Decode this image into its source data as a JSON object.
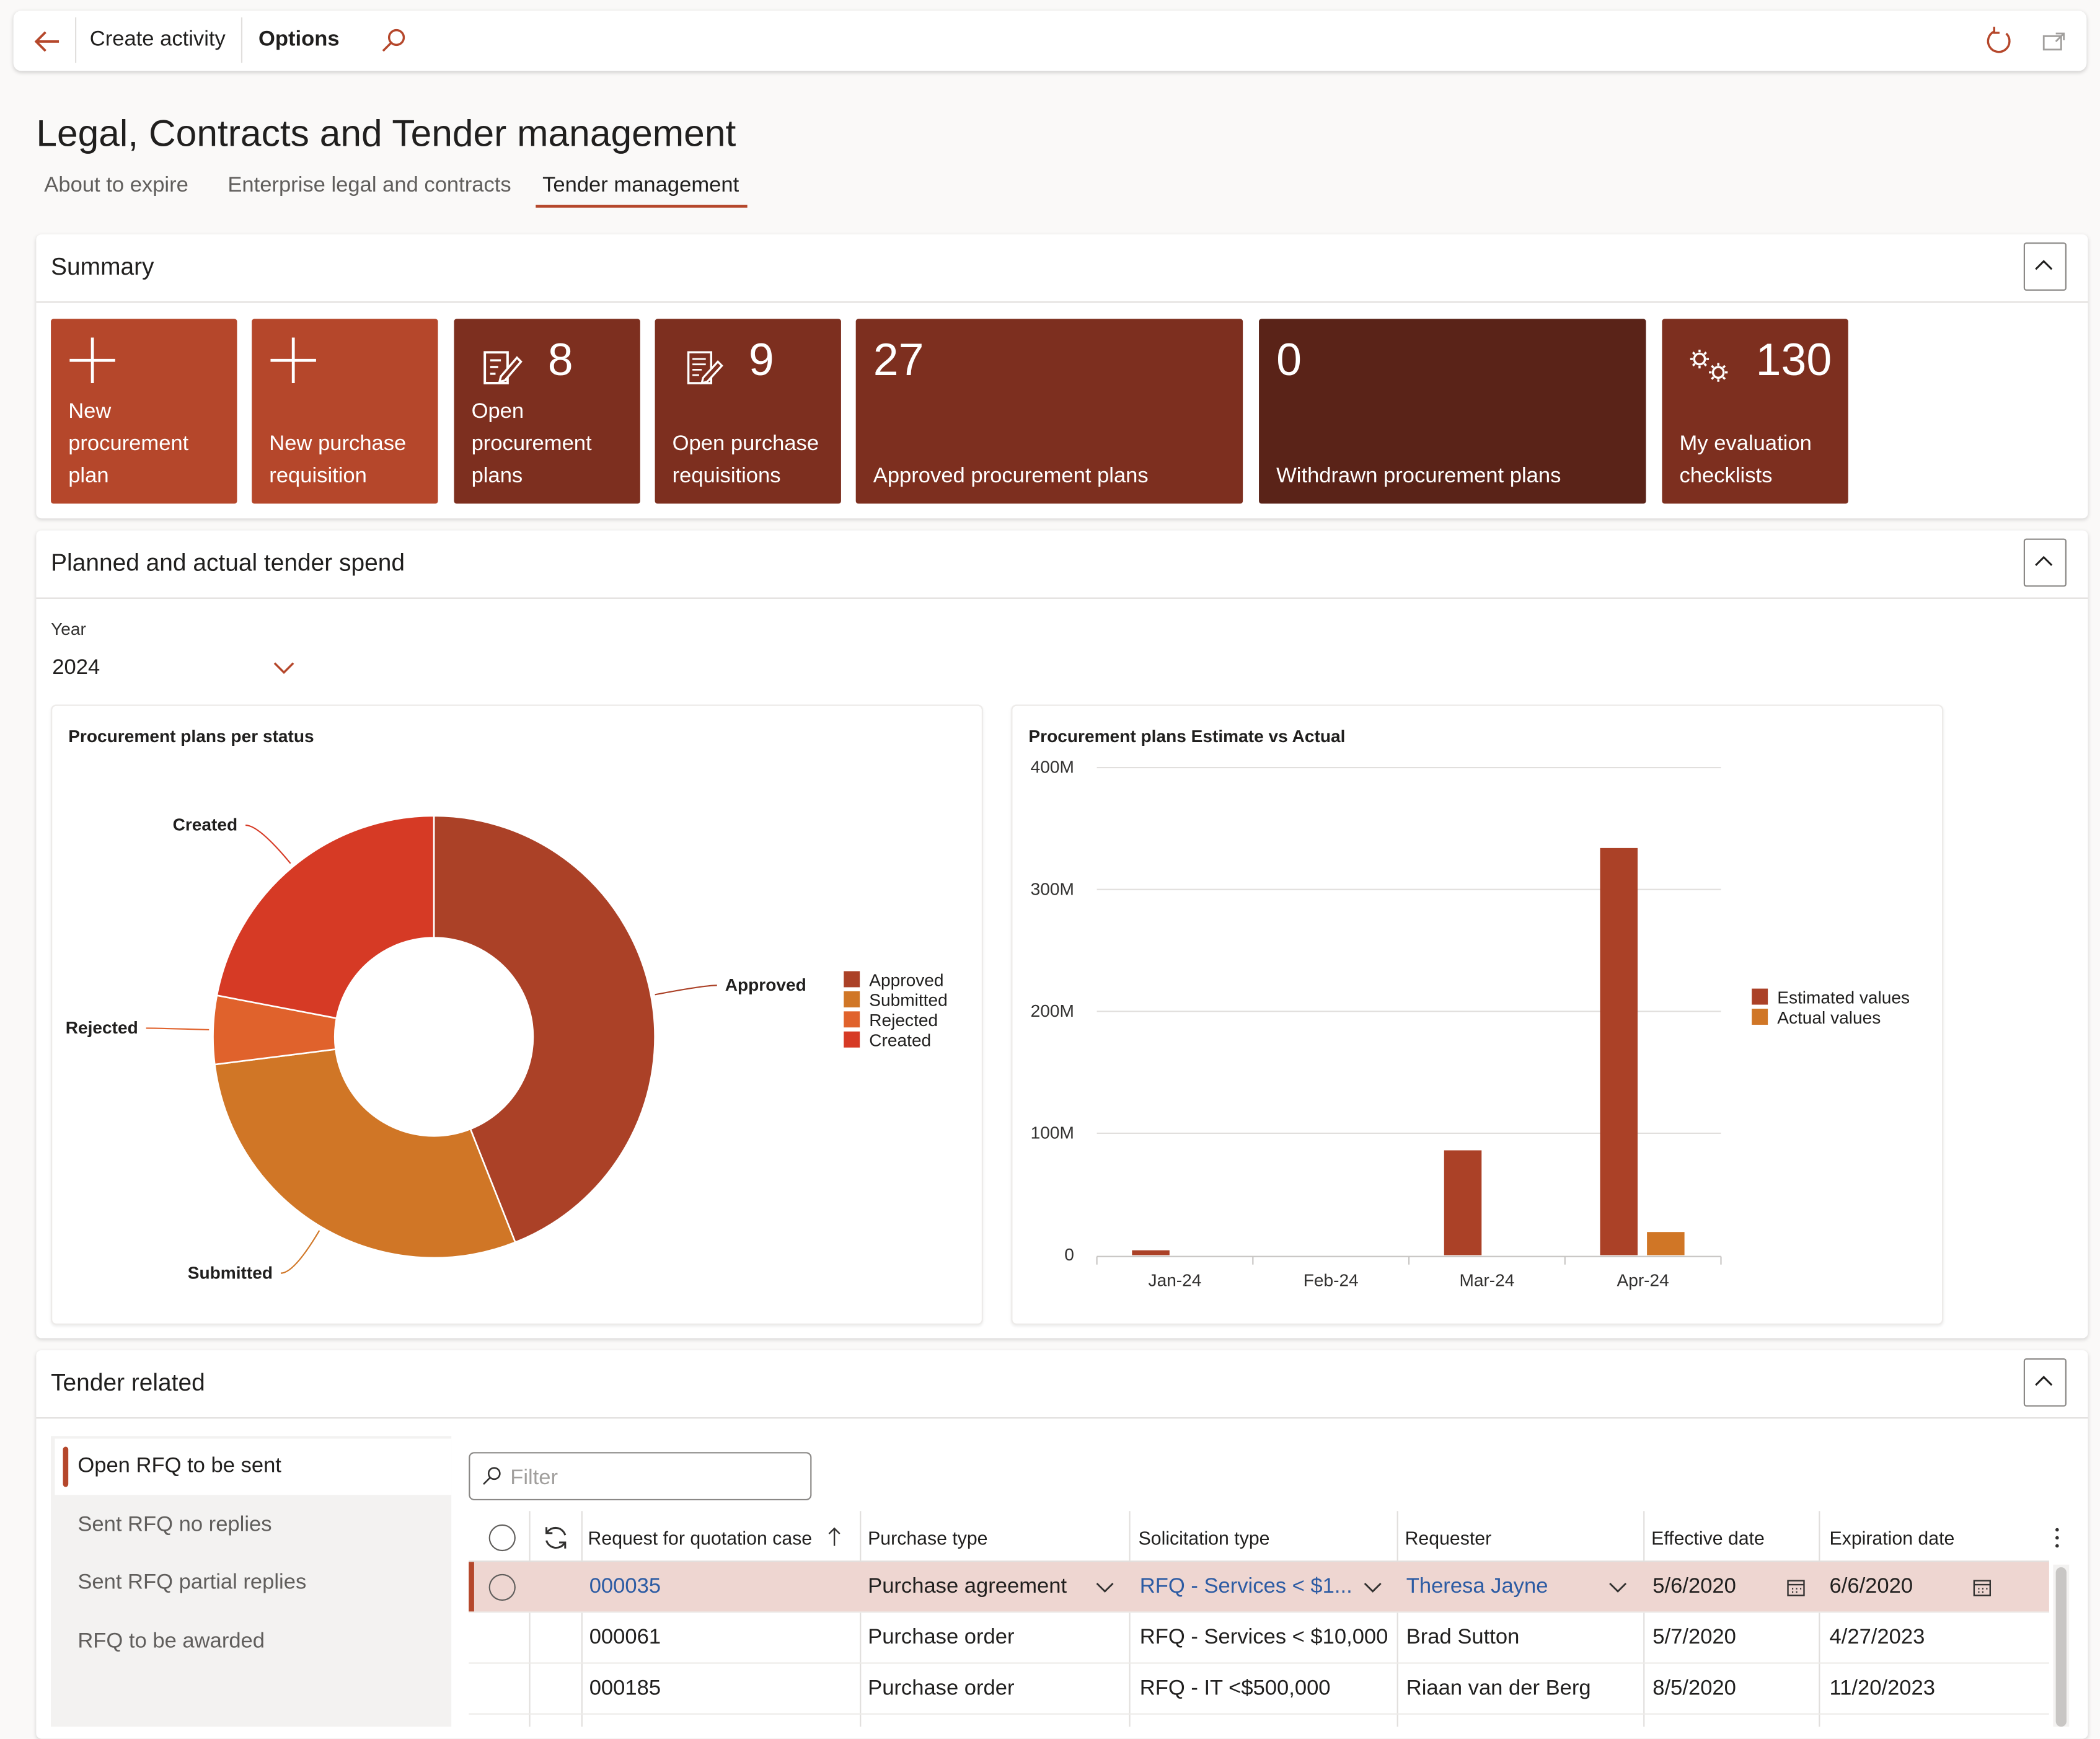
{
  "toolbar": {
    "create_activity": "Create activity",
    "options": "Options"
  },
  "page": {
    "title": "Legal, Contracts and Tender management",
    "tabs": [
      {
        "label": "About to expire"
      },
      {
        "label": "Enterprise legal and contracts"
      },
      {
        "label": "Tender management"
      }
    ],
    "active_tab": "Tender management"
  },
  "summary": {
    "title": "Summary",
    "tiles": [
      {
        "count": "",
        "label": "New procurement plan",
        "icon": "plus-icon",
        "color": "#b5472b"
      },
      {
        "count": "",
        "label": "New purchase requisition",
        "icon": "plus-icon",
        "color": "#b5472b"
      },
      {
        "count": "8",
        "label": "Open procurement plans",
        "icon": "document-edit-icon",
        "color": "#7d2f1f"
      },
      {
        "count": "9",
        "label": "Open purchase requisitions",
        "icon": "document-list-icon",
        "color": "#7d2f1f"
      },
      {
        "count": "27",
        "label": "Approved procurement plans",
        "icon": "",
        "color": "#7d2f1f"
      },
      {
        "count": "0",
        "label": "Withdrawn procurement plans",
        "icon": "",
        "color": "#5a2318"
      },
      {
        "count": "130",
        "label": "My evaluation checklists",
        "icon": "gears-icon",
        "color": "#7d2f1f"
      }
    ]
  },
  "spend": {
    "title": "Planned and actual tender spend",
    "year_label": "Year",
    "year_value": "2024"
  },
  "chart_data": [
    {
      "type": "pie",
      "title": "Procurement plans per status",
      "labels": [
        "Approved",
        "Submitted",
        "Rejected",
        "Created"
      ],
      "values": [
        44,
        29,
        5,
        22
      ],
      "colors": [
        "#ab4127",
        "#d07626",
        "#e0622c",
        "#d63a25"
      ],
      "legend": "right",
      "donut": true
    },
    {
      "type": "bar",
      "title": "Procurement plans Estimate vs Actual",
      "categories": [
        "Jan-24",
        "Feb-24",
        "Mar-24",
        "Apr-24"
      ],
      "series": [
        {
          "name": "Estimated values",
          "values": [
            4,
            0,
            86,
            334
          ],
          "color": "#ab4127"
        },
        {
          "name": "Actual values",
          "values": [
            0,
            0,
            0,
            19
          ],
          "color": "#d07626"
        }
      ],
      "ylim": [
        0,
        400
      ],
      "yticks": [
        "0",
        "100M",
        "200M",
        "300M",
        "400M"
      ],
      "legend": "right",
      "grid": true
    }
  ],
  "tender": {
    "title": "Tender related",
    "nav": [
      {
        "label": "Open RFQ to be sent"
      },
      {
        "label": "Sent RFQ no replies"
      },
      {
        "label": "Sent RFQ partial replies"
      },
      {
        "label": "RFQ to be awarded"
      }
    ],
    "filter_placeholder": "Filter",
    "columns": [
      "Request for quotation case",
      "Purchase type",
      "Solicitation type",
      "Requester",
      "Effective date",
      "Expiration date"
    ],
    "rows": [
      {
        "case": "000035",
        "purchase_type": "Purchase agreement",
        "solicitation": "RFQ - Services < $1...",
        "requester": "Theresa Jayne",
        "effective": "5/6/2020",
        "expiration": "6/6/2020"
      },
      {
        "case": "000061",
        "purchase_type": "Purchase order",
        "solicitation": "RFQ - Services < $10,000",
        "requester": "Brad Sutton",
        "effective": "5/7/2020",
        "expiration": "4/27/2023"
      },
      {
        "case": "000185",
        "purchase_type": "Purchase order",
        "solicitation": "RFQ - IT <$500,000",
        "requester": "Riaan van der Berg",
        "effective": "8/5/2020",
        "expiration": "11/20/2023"
      }
    ]
  }
}
